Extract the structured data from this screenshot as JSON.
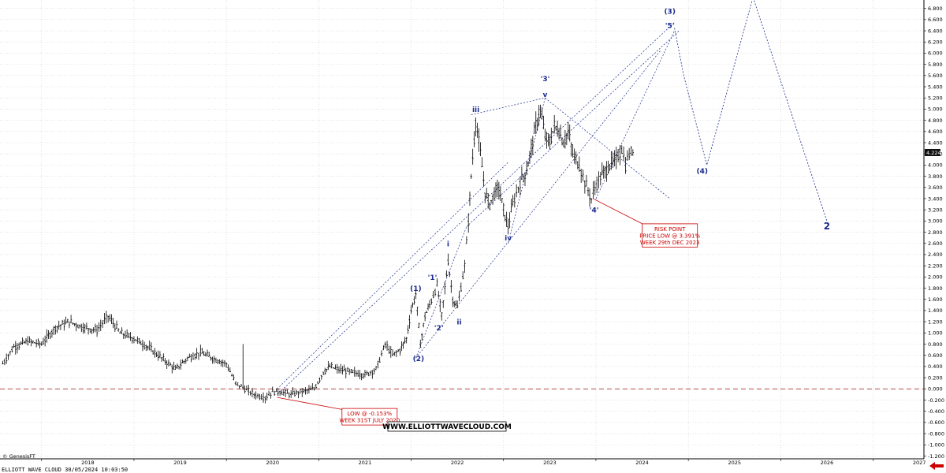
{
  "chart_data": {
    "type": "line",
    "subtype": "ohlc-weekly",
    "title": "",
    "xlabel": "",
    "ylabel": "",
    "x_tick_labels": [
      "2018",
      "2019",
      "2020",
      "2021",
      "2022",
      "2023",
      "2024",
      "2025",
      "2026",
      "2027"
    ],
    "y_tick_labels": [
      "6.800",
      "6.600",
      "6.400",
      "6.200",
      "6.000",
      "5.800",
      "5.600",
      "5.400",
      "5.200",
      "5.000",
      "4.800",
      "4.600",
      "4.400",
      "4.200",
      "4.000",
      "3.800",
      "3.600",
      "3.400",
      "3.200",
      "3.000",
      "2.800",
      "2.600",
      "2.400",
      "2.200",
      "2.000",
      "1.800",
      "1.600",
      "1.400",
      "1.200",
      "1.000",
      "0.800",
      "0.600",
      "0.400",
      "0.200",
      "0.000",
      "-0.200",
      "-0.400",
      "-0.600",
      "-0.800",
      "-1.000",
      "-1.200"
    ],
    "ylim": [
      -1.25,
      6.95
    ],
    "xlim": [
      2017.55,
      2027.55
    ],
    "grid": true,
    "last_price_label": "4.224",
    "price_series": {
      "name": "",
      "x": [
        2017.58,
        2017.7,
        2017.85,
        2018.0,
        2018.15,
        2018.3,
        2018.45,
        2018.6,
        2018.72,
        2018.85,
        2019.0,
        2019.15,
        2019.3,
        2019.45,
        2019.58,
        2019.72,
        2019.85,
        2020.0,
        2020.1,
        2020.2,
        2020.3,
        2020.42,
        2020.5,
        2020.58,
        2020.7,
        2020.82,
        2020.95,
        2021.05,
        2021.12,
        2021.2,
        2021.35,
        2021.5,
        2021.62,
        2021.72,
        2021.8,
        2021.88,
        2021.95,
        2022.0,
        2022.05,
        2022.1,
        2022.15,
        2022.2,
        2022.28,
        2022.33,
        2022.4,
        2022.45,
        2022.5,
        2022.58,
        2022.62,
        2022.65,
        2022.7,
        2022.75,
        2022.8,
        2022.85,
        2022.9,
        2022.95,
        2023.0,
        2023.05,
        2023.1,
        2023.18,
        2023.25,
        2023.3,
        2023.35,
        2023.4,
        2023.45,
        2023.5,
        2023.55,
        2023.6,
        2023.65,
        2023.7,
        2023.75,
        2023.82,
        2023.88,
        2023.95,
        2023.99,
        2024.05,
        2024.1,
        2024.15,
        2024.22,
        2024.28,
        2024.32,
        2024.36,
        2024.4
      ],
      "y": [
        0.45,
        0.75,
        0.85,
        0.8,
        1.1,
        1.2,
        1.1,
        1.05,
        1.3,
        1.0,
        0.9,
        0.75,
        0.55,
        0.35,
        0.55,
        0.65,
        0.55,
        0.45,
        0.1,
        0.0,
        -0.1,
        -0.153,
        -0.05,
        -0.05,
        -0.1,
        -0.05,
        0.0,
        0.3,
        0.4,
        0.35,
        0.3,
        0.25,
        0.35,
        0.8,
        0.6,
        0.7,
        0.9,
        1.4,
        1.7,
        0.8,
        1.3,
        1.5,
        1.85,
        1.3,
        2.3,
        1.6,
        1.45,
        2.2,
        3.0,
        3.8,
        4.8,
        4.2,
        3.5,
        3.3,
        3.5,
        3.6,
        3.2,
        2.9,
        3.3,
        3.7,
        3.9,
        4.3,
        4.7,
        5.0,
        4.5,
        4.4,
        4.7,
        4.6,
        4.4,
        4.6,
        4.2,
        4.0,
        3.7,
        3.391,
        3.6,
        3.8,
        3.9,
        4.0,
        4.1,
        4.3,
        4.0,
        4.2,
        4.224
      ]
    },
    "channel_lines": [
      {
        "x": [
          2020.55,
          2023.05
        ],
        "y": [
          0.0,
          4.05
        ]
      },
      {
        "x": [
          2020.55,
          2024.85
        ],
        "y": [
          -0.1,
          6.55
        ]
      },
      {
        "x": [
          2022.05,
          2024.7
        ],
        "y": [
          0.55,
          6.05
        ]
      },
      {
        "x": [
          2022.05,
          2022.6
        ],
        "y": [
          0.55,
          2.9
        ]
      },
      {
        "x": [
          2022.6,
          2024.9
        ],
        "y": [
          2.9,
          6.4
        ]
      },
      {
        "x": [
          2022.65,
          2023.45
        ],
        "y": [
          4.9,
          5.2
        ]
      },
      {
        "x": [
          2023.05,
          2023.45
        ],
        "y": [
          2.6,
          5.2
        ]
      },
      {
        "x": [
          2023.45,
          2024.8
        ],
        "y": [
          5.2,
          3.4
        ]
      },
      {
        "x": [
          2024.0,
          2024.85
        ],
        "y": [
          3.4,
          6.4
        ]
      }
    ],
    "projection_path": {
      "x": [
        2024.85,
        2024.95,
        2025.2,
        2025.7,
        2026.5
      ],
      "y": [
        6.45,
        5.6,
        4.0,
        7.0,
        3.0
      ]
    },
    "wave_labels": [
      {
        "text": "(1)",
        "x": 2022.05,
        "y": 1.75
      },
      {
        "text": "(2)",
        "x": 2022.08,
        "y": 0.5
      },
      {
        "text": "'1'",
        "x": 2022.23,
        "y": 1.95
      },
      {
        "text": "'2'",
        "x": 2022.3,
        "y": 1.05
      },
      {
        "text": "i",
        "x": 2022.4,
        "y": 2.55
      },
      {
        "text": "ii",
        "x": 2022.52,
        "y": 1.15
      },
      {
        "text": "iii",
        "x": 2022.7,
        "y": 4.95
      },
      {
        "text": "iv",
        "x": 2023.05,
        "y": 2.65
      },
      {
        "text": "'3'",
        "x": 2023.45,
        "y": 5.5
      },
      {
        "text": "v",
        "x": 2023.45,
        "y": 5.22
      },
      {
        "text": "'4'",
        "x": 2023.98,
        "y": 3.15
      },
      {
        "text": "(3)",
        "x": 2024.8,
        "y": 6.7
      },
      {
        "text": "'5'",
        "x": 2024.8,
        "y": 6.45
      },
      {
        "text": "(4)",
        "x": 2025.15,
        "y": 3.85
      },
      {
        "text": "2",
        "x": 2026.5,
        "y": 2.85,
        "big": true
      }
    ],
    "zero_line": 0.0,
    "annotations": [
      {
        "lines": [
          "LOW @ -0.153%",
          "WEEK 31ST JULY 2020"
        ],
        "point": {
          "x": 2020.55,
          "y": -0.153
        },
        "box": {
          "x": 2021.55,
          "y": -0.35
        }
      },
      {
        "lines": [
          "RISK POINT",
          "PRICE LOW @ 3.391%",
          "WEEK 29th DEC 2023"
        ],
        "point": {
          "x": 2023.98,
          "y": 3.391
        },
        "box": {
          "x": 2024.8,
          "y": 2.95
        }
      }
    ],
    "watermark": "WWW.ELLIOTTWAVECLOUD.COM",
    "copyright": "© GenesisFT",
    "footer": "ELLIOTT WAVE CLOUD    30/05/2024 10:03:50"
  },
  "colors": {
    "price": "#000000",
    "channel": "#1a2a8c",
    "wave_label": "#1a2a8c",
    "annotation": "#cc0000",
    "zero_line": "#b03030",
    "grid": "#d0d0d0",
    "last_price_bg": "#111111",
    "arrow": "#cc0000"
  }
}
